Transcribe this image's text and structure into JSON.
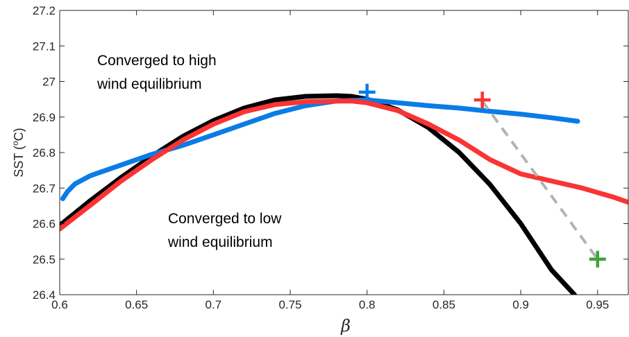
{
  "chart_data": {
    "type": "line",
    "title": "",
    "xlabel": "β",
    "ylabel": "SST (",
    "ylabel_sup": "o",
    "ylabel_unit": "C)",
    "xlim": [
      0.6,
      0.97
    ],
    "ylim": [
      26.4,
      27.2
    ],
    "grid": false,
    "x_ticks": [
      "0.6",
      "0.65",
      "0.7",
      "0.75",
      "0.8",
      "0.85",
      "0.9",
      "0.95"
    ],
    "y_ticks": [
      "26.4",
      "26.5",
      "26.6",
      "26.7",
      "26.8",
      "26.9",
      "27",
      "27.1",
      "27.2"
    ],
    "annotations": [
      {
        "line1": "Converged to high",
        "line2": "wind equilibrium"
      },
      {
        "line1": "Converged to low",
        "line2": "wind equilibrium"
      }
    ],
    "series": [
      {
        "color": "#000000",
        "style": "solid",
        "x": [
          0.6,
          0.62,
          0.64,
          0.66,
          0.68,
          0.7,
          0.72,
          0.74,
          0.76,
          0.78,
          0.79,
          0.8,
          0.82,
          0.84,
          0.86,
          0.88,
          0.9,
          0.92,
          0.935
        ],
        "y": [
          26.595,
          26.665,
          26.73,
          26.79,
          26.845,
          26.89,
          26.925,
          26.948,
          26.958,
          26.96,
          26.958,
          26.95,
          26.92,
          26.87,
          26.8,
          26.71,
          26.6,
          26.47,
          26.4
        ]
      },
      {
        "color": "#0a7ce6",
        "style": "solid",
        "x": [
          0.602,
          0.605,
          0.61,
          0.62,
          0.64,
          0.66,
          0.68,
          0.7,
          0.72,
          0.74,
          0.76,
          0.78,
          0.8,
          0.82,
          0.84,
          0.86,
          0.88,
          0.9,
          0.92,
          0.937
        ],
        "y": [
          26.67,
          26.69,
          26.712,
          26.735,
          26.765,
          26.795,
          26.82,
          26.85,
          26.88,
          26.91,
          26.932,
          26.945,
          26.948,
          26.94,
          26.932,
          26.925,
          26.916,
          26.908,
          26.898,
          26.888
        ]
      },
      {
        "color": "#fa3434",
        "style": "solid",
        "x": [
          0.6,
          0.62,
          0.64,
          0.66,
          0.68,
          0.7,
          0.72,
          0.74,
          0.76,
          0.78,
          0.79,
          0.8,
          0.82,
          0.84,
          0.86,
          0.88,
          0.9,
          0.92,
          0.94,
          0.96,
          0.97
        ],
        "y": [
          26.585,
          26.652,
          26.72,
          26.78,
          26.835,
          26.88,
          26.915,
          26.935,
          26.943,
          26.945,
          26.945,
          26.94,
          26.918,
          26.88,
          26.835,
          26.78,
          26.74,
          26.72,
          26.7,
          26.675,
          26.66
        ]
      },
      {
        "color": "#b3b3b3",
        "style": "dashed",
        "x": [
          0.875,
          0.95
        ],
        "y": [
          26.945,
          26.5
        ]
      }
    ],
    "markers": [
      {
        "shape": "+",
        "color": "#0a7ce6",
        "x": 0.8,
        "y": 26.97
      },
      {
        "shape": "+",
        "color": "#fa3434",
        "x": 0.875,
        "y": 26.948
      },
      {
        "shape": "+",
        "color": "#3da33d",
        "x": 0.95,
        "y": 26.5
      }
    ]
  }
}
